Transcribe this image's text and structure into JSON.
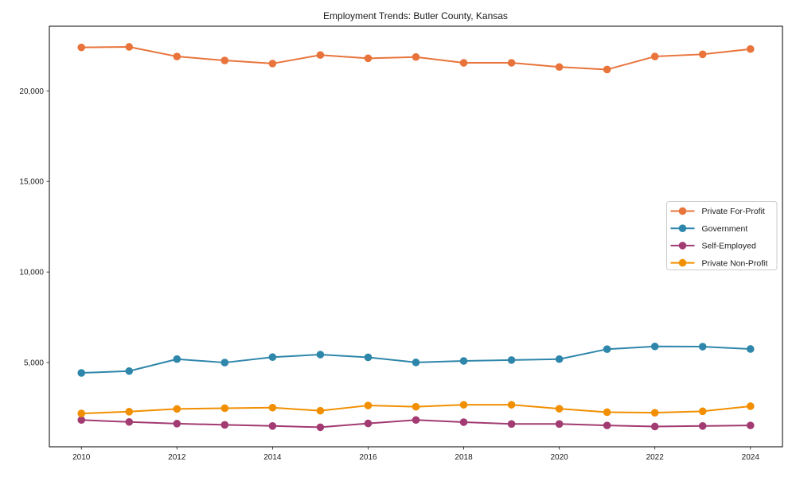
{
  "chart_data": {
    "type": "line",
    "title": "Employment Trends: Butler County, Kansas",
    "x": [
      2010,
      2011,
      2012,
      2013,
      2014,
      2015,
      2016,
      2017,
      2018,
      2019,
      2020,
      2021,
      2022,
      2023,
      2024
    ],
    "xticks": [
      2010,
      2012,
      2014,
      2016,
      2018,
      2020,
      2022,
      2024
    ],
    "xtick_labels": [
      "2010",
      "2012",
      "2014",
      "2016",
      "2018",
      "2020",
      "2022",
      "2024"
    ],
    "yticks": [
      5000,
      10000,
      15000,
      20000
    ],
    "ytick_labels": [
      "5,000",
      "10,000",
      "15,000",
      "20,000"
    ],
    "xlim": [
      2009.33,
      2024.67
    ],
    "ylim": [
      350,
      23570
    ],
    "grid": false,
    "legend_position": "center right",
    "series": [
      {
        "name": "Private For-Profit",
        "color": "#E8743B",
        "values": [
          22400,
          22430,
          21900,
          21680,
          21510,
          21980,
          21800,
          21870,
          21550,
          21550,
          21320,
          21180,
          21900,
          22020,
          22310
        ]
      },
      {
        "name": "Government",
        "color": "#2E86AB",
        "values": [
          4430,
          4530,
          5190,
          5000,
          5300,
          5440,
          5290,
          5010,
          5090,
          5140,
          5190,
          5740,
          5890,
          5880,
          5750
        ]
      },
      {
        "name": "Self-Employed",
        "color": "#A23B72",
        "values": [
          1830,
          1720,
          1630,
          1560,
          1500,
          1430,
          1640,
          1830,
          1710,
          1610,
          1610,
          1530,
          1470,
          1500,
          1530
        ]
      },
      {
        "name": "Private Non-Profit",
        "color": "#F18F01",
        "values": [
          2190,
          2290,
          2440,
          2480,
          2510,
          2340,
          2630,
          2560,
          2670,
          2670,
          2450,
          2260,
          2230,
          2310,
          2590
        ]
      }
    ]
  }
}
